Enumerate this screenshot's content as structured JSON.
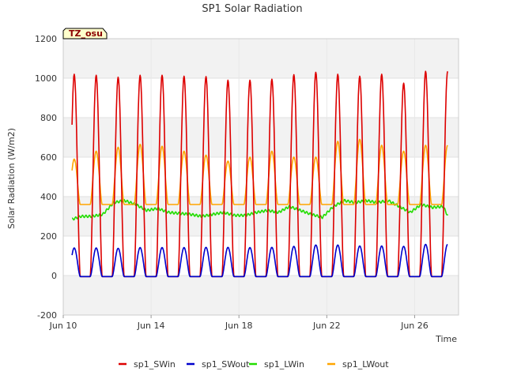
{
  "chart_data": {
    "type": "line",
    "title": "SP1 Solar Radiation",
    "xlabel": "Time",
    "ylabel": "Solar Radiation (W/m2)",
    "badge": "TZ_osu",
    "ylim": [
      -200,
      1200
    ],
    "yticks": [
      -200,
      0,
      200,
      400,
      600,
      800,
      1000,
      1200
    ],
    "xlim": [
      10,
      28
    ],
    "xticks": [
      {
        "day": 10,
        "label": "Jun 10"
      },
      {
        "day": 14,
        "label": "Jun 14"
      },
      {
        "day": 18,
        "label": "Jun 18"
      },
      {
        "day": 22,
        "label": "Jun 22"
      },
      {
        "day": 26,
        "label": "Jun 26"
      }
    ],
    "grid": true,
    "legend_position": "bottom",
    "colors": {
      "sp1_SWin": "#dd0000",
      "sp1_SWout": "#0000cc",
      "sp1_LWin": "#22dd00",
      "sp1_LWout": "#ffa500",
      "band": "#f2f2f2",
      "badge_bg": "#ffffcc"
    },
    "first_day": 10.4,
    "last_day": 27.5,
    "series": [
      {
        "name": "sp1_SWin",
        "kind": "diurnal",
        "night": -5,
        "noon_peaks": [
          1020,
          1015,
          1005,
          1015,
          1015,
          1010,
          1008,
          990,
          990,
          995,
          1018,
          1030,
          1020,
          1010,
          1020,
          975,
          1035
        ]
      },
      {
        "name": "sp1_SWout",
        "kind": "diurnal",
        "night": -5,
        "noon_peaks": [
          140,
          140,
          138,
          142,
          142,
          142,
          143,
          143,
          142,
          143,
          148,
          155,
          155,
          150,
          150,
          148,
          158
        ]
      },
      {
        "name": "sp1_LWin",
        "kind": "slow",
        "values": [
          [
            10.4,
            285
          ],
          [
            10.8,
            300
          ],
          [
            11.3,
            300
          ],
          [
            11.8,
            310
          ],
          [
            12.3,
            370
          ],
          [
            12.8,
            380
          ],
          [
            13.3,
            360
          ],
          [
            13.8,
            330
          ],
          [
            14.3,
            340
          ],
          [
            14.8,
            320
          ],
          [
            15.3,
            315
          ],
          [
            15.8,
            310
          ],
          [
            16.3,
            300
          ],
          [
            16.8,
            310
          ],
          [
            17.3,
            320
          ],
          [
            17.8,
            305
          ],
          [
            18.3,
            305
          ],
          [
            18.8,
            320
          ],
          [
            19.3,
            330
          ],
          [
            19.8,
            320
          ],
          [
            20.3,
            350
          ],
          [
            20.8,
            330
          ],
          [
            21.3,
            310
          ],
          [
            21.8,
            295
          ],
          [
            22.3,
            350
          ],
          [
            22.8,
            380
          ],
          [
            23.3,
            370
          ],
          [
            23.8,
            380
          ],
          [
            24.3,
            370
          ],
          [
            24.8,
            380
          ],
          [
            25.3,
            350
          ],
          [
            25.8,
            320
          ],
          [
            26.3,
            360
          ],
          [
            26.8,
            345
          ],
          [
            27.3,
            350
          ],
          [
            27.5,
            305
          ]
        ]
      },
      {
        "name": "sp1_LWout",
        "kind": "diurnal",
        "night": 360,
        "noon_peaks": [
          590,
          630,
          650,
          665,
          655,
          630,
          610,
          580,
          600,
          630,
          600,
          600,
          680,
          690,
          660,
          630,
          660
        ]
      }
    ]
  }
}
